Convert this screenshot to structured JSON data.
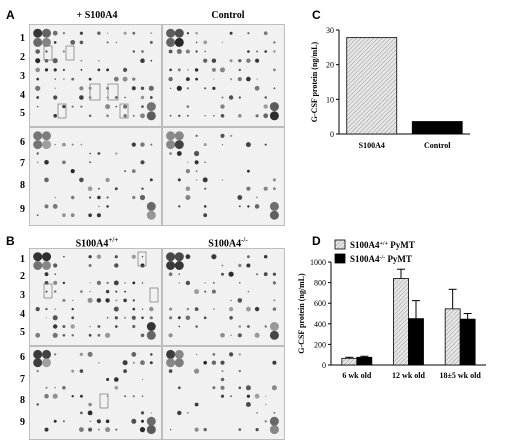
{
  "panels": {
    "A": {
      "letter": "A",
      "titles": [
        "+ S100A4",
        "Control"
      ],
      "row_labels": [
        "1",
        "2",
        "3",
        "4",
        "5",
        "6",
        "7",
        "8",
        "9"
      ]
    },
    "B": {
      "letter": "B",
      "titles": [
        "S100A4",
        "S100A4"
      ],
      "title_sups": [
        "+/+",
        "-/-"
      ],
      "row_labels": [
        "1",
        "2",
        "3",
        "4",
        "5",
        "6",
        "7",
        "8",
        "9"
      ]
    },
    "C": {
      "letter": "C"
    },
    "D": {
      "letter": "D"
    }
  },
  "chart_data": [
    {
      "panel": "C",
      "type": "bar",
      "categories": [
        "S100A4",
        "Control"
      ],
      "values": [
        27.8,
        3.6
      ],
      "ylabel": "G-CSF protein (ng/mL)",
      "ylim": [
        0,
        30
      ],
      "yticks": [
        "0",
        "10",
        "20",
        "30"
      ],
      "colors": [
        "#d0d0d0",
        "#000000"
      ]
    },
    {
      "panel": "D",
      "type": "bar",
      "categories": [
        "6 wk old",
        "12 wk old",
        "18±5 wk old"
      ],
      "series": [
        {
          "name_base": "S100A4",
          "name_sup": "+/+",
          "name_tail": " PyMT",
          "values": [
            65,
            840,
            545
          ],
          "errors": [
            10,
            90,
            190
          ],
          "color": "#cfcfcf"
        },
        {
          "name_base": "S100A4",
          "name_sup": "-/-",
          "name_tail": " PyMT",
          "values": [
            75,
            450,
            445
          ],
          "errors": [
            10,
            175,
            55
          ],
          "color": "#000000"
        }
      ],
      "ylabel": "G-CSF protein (ng/mL)",
      "ylim": [
        0,
        1000
      ],
      "yticks": [
        "0",
        "200",
        "400",
        "600",
        "800",
        "1000"
      ],
      "legend": "top-left"
    }
  ]
}
